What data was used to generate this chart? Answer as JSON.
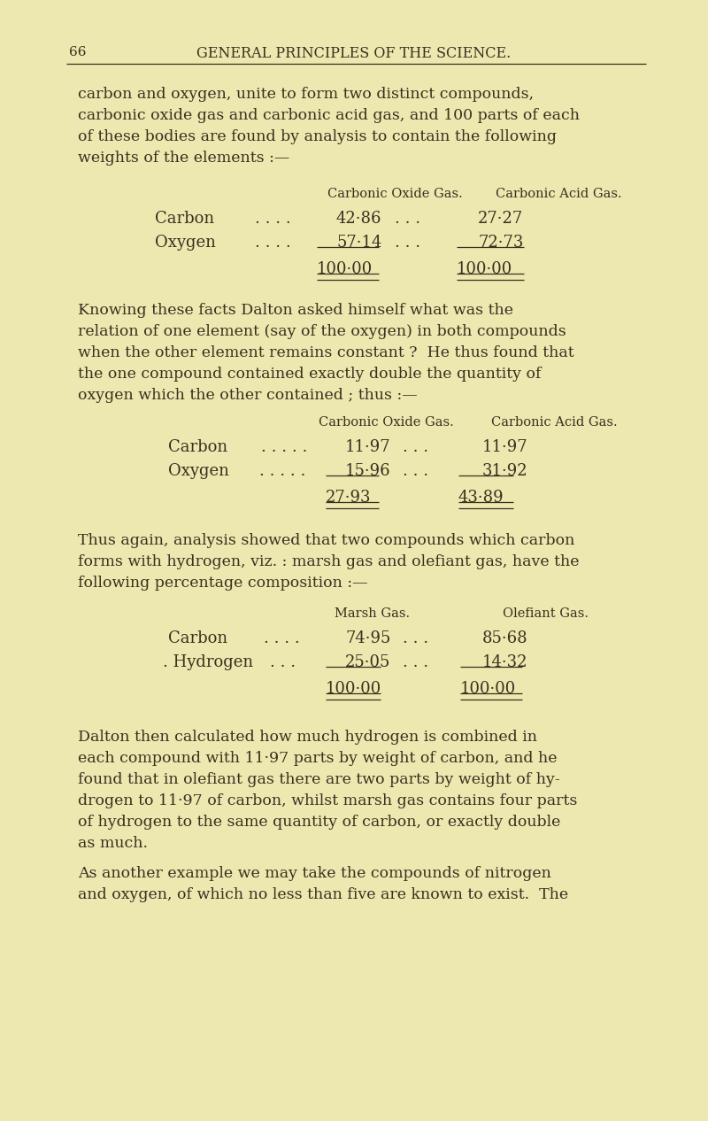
{
  "bg_color": "#ede8b0",
  "text_color": "#3a3020",
  "page_number": "66",
  "header_title": "GENERAL PRINCIPLES OF THE SCIENCE.",
  "paragraphs": [
    "carbon and oxygen, unite to form two distinct compounds,",
    "carbonic oxide gas and carbonic acid gas, and 100 parts of each",
    "of these bodies are found by analysis to contain the following",
    "weights of the elements :—"
  ],
  "table1_header": [
    "Carbonic Oxide Gas.",
    "Carbonic Acid Gas."
  ],
  "table1_rows": [
    [
      "Carbon",
      ". . . .",
      "42·86",
      ". . .",
      "27·27"
    ],
    [
      "Oxygen",
      ". . . .",
      "57·14",
      ". . .",
      "72·73"
    ]
  ],
  "table1_totals": [
    "100·00",
    "100·00"
  ],
  "paragraph2": [
    "Knowing these facts Dalton asked himself what was the",
    "relation of one element (say of the oxygen) in both compounds",
    "when the other element remains constant ?  He thus found that",
    "the one compound contained exactly double the quantity of",
    "oxygen which the other contained ; thus :—"
  ],
  "table2_header": [
    "Carbonic Oxide Gas.",
    "Carbonic Acid Gas."
  ],
  "table2_rows": [
    [
      "Carbon",
      ". . . . .",
      "11·97",
      ". . .",
      "11·97"
    ],
    [
      "Oxygen",
      ". . . . .",
      "15·96",
      ". . .",
      "31·92"
    ]
  ],
  "table2_totals": [
    "27·93",
    "43·89"
  ],
  "paragraph3": [
    "Thus again, analysis showed that two compounds which carbon",
    "forms with hydrogen, viz. : marsh gas and olefiant gas, have the",
    "following percentage composition :—"
  ],
  "table3_header": [
    "Marsh Gas.",
    "Olefiant Gas."
  ],
  "table3_rows": [
    [
      "Carbon",
      ". . . .",
      "74·95",
      ". . .",
      "85·68"
    ],
    [
      ". Hydrogen",
      ". . .",
      "25·05",
      ". . .",
      "14·32"
    ]
  ],
  "table3_totals": [
    "100·00",
    "100·00"
  ],
  "paragraph4": [
    "Dalton then calculated how much hydrogen is combined in",
    "each compound with 11·97 parts by weight of carbon, and he",
    "found that in olefiant gas there are two parts by weight of hy-",
    "drogen to 11·97 of carbon, whilst marsh gas contains four parts",
    "of hydrogen to the same quantity of carbon, or exactly double",
    "as much."
  ],
  "paragraph5": [
    "As another example we may take the compounds of nitrogen",
    "and oxygen, of which no less than five are known to exist.  The"
  ]
}
